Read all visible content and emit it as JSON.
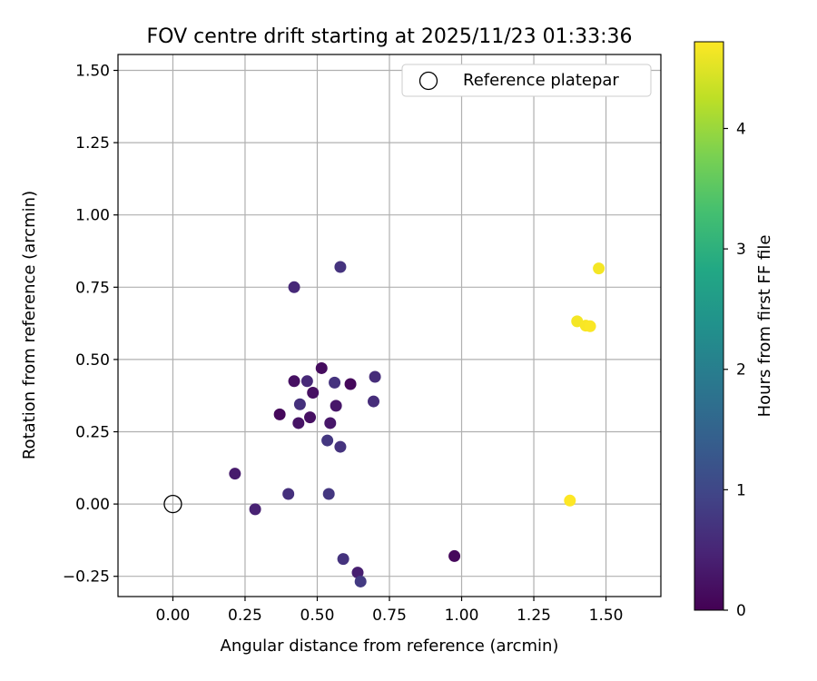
{
  "chart_data": {
    "type": "scatter",
    "title": "FOV centre drift starting at 2025/11/23 01:33:36",
    "xlabel": "Angular distance from reference (arcmin)",
    "ylabel": "Rotation from reference (arcmin)",
    "xlim": [
      -0.19,
      1.69
    ],
    "ylim": [
      -0.32,
      1.555
    ],
    "xticks": [
      0.0,
      0.25,
      0.5,
      0.75,
      1.0,
      1.25,
      1.5
    ],
    "xtick_labels": [
      "0.00",
      "0.25",
      "0.50",
      "0.75",
      "1.00",
      "1.25",
      "1.50"
    ],
    "yticks": [
      -0.25,
      0.0,
      0.25,
      0.5,
      0.75,
      1.0,
      1.25,
      1.5
    ],
    "ytick_labels": [
      "−0.25",
      "0.00",
      "0.25",
      "0.50",
      "0.75",
      "1.00",
      "1.25",
      "1.50"
    ],
    "grid": true,
    "legend": {
      "position": "top-right",
      "entries": [
        "Reference platepar"
      ]
    },
    "reference_point": {
      "x": 0.0,
      "y": 0.0
    },
    "colorbar": {
      "label": "Hours from first FF file",
      "colormap": "viridis",
      "range": [
        0,
        4.72
      ],
      "ticks": [
        0,
        1,
        2,
        3,
        4
      ],
      "tick_labels": [
        "0",
        "1",
        "2",
        "3",
        "4"
      ]
    },
    "points": [
      {
        "x": 0.58,
        "y": 0.82,
        "c": 0.7
      },
      {
        "x": 0.42,
        "y": 0.75,
        "c": 0.55
      },
      {
        "x": 0.515,
        "y": 0.47,
        "c": 0.15
      },
      {
        "x": 0.42,
        "y": 0.425,
        "c": 0.2
      },
      {
        "x": 0.465,
        "y": 0.425,
        "c": 0.55
      },
      {
        "x": 0.56,
        "y": 0.42,
        "c": 0.7
      },
      {
        "x": 0.615,
        "y": 0.415,
        "c": 0.1
      },
      {
        "x": 0.7,
        "y": 0.44,
        "c": 0.6
      },
      {
        "x": 0.485,
        "y": 0.385,
        "c": 0.2
      },
      {
        "x": 0.44,
        "y": 0.345,
        "c": 0.65
      },
      {
        "x": 0.565,
        "y": 0.34,
        "c": 0.3
      },
      {
        "x": 0.695,
        "y": 0.355,
        "c": 0.6
      },
      {
        "x": 0.37,
        "y": 0.31,
        "c": 0.1
      },
      {
        "x": 0.475,
        "y": 0.3,
        "c": 0.2
      },
      {
        "x": 0.435,
        "y": 0.28,
        "c": 0.25
      },
      {
        "x": 0.545,
        "y": 0.28,
        "c": 0.3
      },
      {
        "x": 0.535,
        "y": 0.22,
        "c": 0.75
      },
      {
        "x": 0.58,
        "y": 0.198,
        "c": 0.7
      },
      {
        "x": 0.215,
        "y": 0.105,
        "c": 0.35
      },
      {
        "x": 0.4,
        "y": 0.035,
        "c": 0.65
      },
      {
        "x": 0.54,
        "y": 0.035,
        "c": 0.75
      },
      {
        "x": 0.285,
        "y": -0.018,
        "c": 0.45
      },
      {
        "x": 0.59,
        "y": -0.19,
        "c": 0.7
      },
      {
        "x": 0.64,
        "y": -0.237,
        "c": 0.4
      },
      {
        "x": 0.65,
        "y": -0.268,
        "c": 0.8
      },
      {
        "x": 0.975,
        "y": -0.18,
        "c": 0.1
      },
      {
        "x": 1.475,
        "y": 0.815,
        "c": 4.65
      },
      {
        "x": 1.4,
        "y": 0.632,
        "c": 4.65
      },
      {
        "x": 1.43,
        "y": 0.617,
        "c": 4.68
      },
      {
        "x": 1.445,
        "y": 0.615,
        "c": 4.7
      },
      {
        "x": 1.375,
        "y": 0.012,
        "c": 4.72
      }
    ]
  }
}
